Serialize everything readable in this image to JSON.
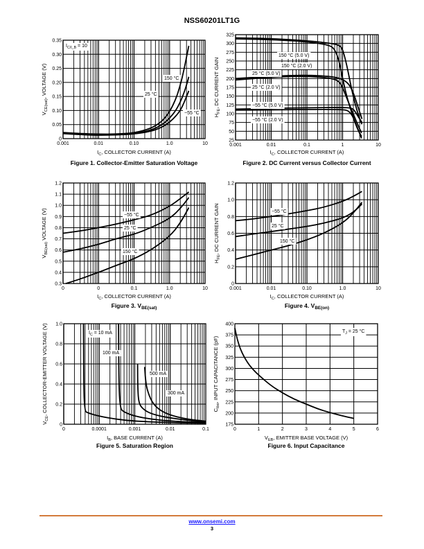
{
  "header": {
    "title": "NSS60201LT1G"
  },
  "footer": {
    "link": "www.onsemi.com",
    "page": "3",
    "accent": "#d37a3b",
    "link_color": "#1a1aff"
  },
  "chart_data": [
    {
      "id": "fig1",
      "type": "line",
      "caption": "Figure 1. Collector-Emitter Saturation Voltage",
      "xlabel": "I_C, COLLECTOR CURRENT (A)",
      "ylabel": "V_CE(sat), VOLTAGE (V)",
      "xscale": "log",
      "xlim": [
        0.001,
        10
      ],
      "ylim": [
        0,
        0.35
      ],
      "xticks": [
        "0.001",
        "0.01",
        "0.10",
        "1.0",
        "10"
      ],
      "yticks": [
        "0",
        "0.05",
        "0.10",
        "0.15",
        "0.20",
        "0.25",
        "0.30",
        "0.35"
      ],
      "ytick_values": [
        0,
        0.05,
        0.1,
        0.15,
        0.2,
        0.25,
        0.3,
        0.35
      ],
      "grid": true,
      "annotations": [
        "I_C/I_B = 10",
        "150 °C",
        "25 °C",
        "−55 °C"
      ],
      "series": [
        {
          "name": "150 °C",
          "x": [
            0.001,
            0.003,
            0.01,
            0.03,
            0.1,
            0.3,
            0.6,
            1.0,
            1.5,
            2.0,
            2.5,
            3.0,
            3.5
          ],
          "y": [
            0.022,
            0.018,
            0.016,
            0.016,
            0.02,
            0.036,
            0.06,
            0.095,
            0.14,
            0.19,
            0.24,
            0.29,
            0.33
          ]
        },
        {
          "name": "25 °C",
          "x": [
            0.001,
            0.003,
            0.01,
            0.03,
            0.1,
            0.3,
            0.6,
            1.0,
            1.5,
            2.0,
            2.5,
            3.0,
            3.5
          ],
          "y": [
            0.02,
            0.016,
            0.014,
            0.014,
            0.017,
            0.03,
            0.048,
            0.072,
            0.1,
            0.13,
            0.16,
            0.19,
            0.22
          ]
        },
        {
          "name": "−55 °C",
          "x": [
            0.001,
            0.003,
            0.01,
            0.03,
            0.1,
            0.3,
            0.6,
            1.0,
            1.5,
            2.0,
            2.5,
            3.0,
            3.5
          ],
          "y": [
            0.018,
            0.014,
            0.012,
            0.013,
            0.016,
            0.026,
            0.04,
            0.058,
            0.08,
            0.1,
            0.125,
            0.15,
            0.17
          ]
        }
      ]
    },
    {
      "id": "fig2",
      "type": "line",
      "caption": "Figure 2. DC Current versus Collector Current",
      "xlabel": "I_C, COLLECTOR CURRENT (A)",
      "ylabel": "H_FE, DC CURRENT GAIN",
      "xscale": "log",
      "xlim": [
        0.001,
        10
      ],
      "ylim": [
        25,
        325
      ],
      "xticks": [
        "0.001",
        "0.01",
        "0.1",
        "1",
        "10"
      ],
      "yticks": [
        "25",
        "50",
        "75",
        "100",
        "125",
        "150",
        "175",
        "200",
        "225",
        "250",
        "275",
        "300",
        "325"
      ],
      "ytick_values": [
        25,
        50,
        75,
        100,
        125,
        150,
        175,
        200,
        225,
        250,
        275,
        300,
        325
      ],
      "grid": true,
      "annotations": [
        "150 °C (5.0 V)",
        "150 °C (2.0 V)",
        "25 °C (5.0 V)",
        "25 °C (2.0 V)",
        "−55 °C (5.0 V)",
        "−55 °C (2.0 V)"
      ],
      "series": [
        {
          "name": "150 °C (5.0 V)",
          "x": [
            0.001,
            0.01,
            0.1,
            0.5,
            0.8,
            1.0,
            1.3,
            1.7,
            2.2,
            3.0,
            3.5
          ],
          "y": [
            316,
            314,
            308,
            300,
            295,
            285,
            240,
            180,
            130,
            85,
            70
          ]
        },
        {
          "name": "150 °C (2.0 V)",
          "x": [
            0.001,
            0.01,
            0.1,
            0.4,
            0.6,
            0.8,
            1.0,
            1.3,
            1.7,
            2.5,
            3.4
          ],
          "y": [
            313,
            311,
            305,
            296,
            285,
            250,
            200,
            150,
            110,
            60,
            35
          ]
        },
        {
          "name": "25 °C (5.0 V)",
          "x": [
            0.001,
            0.01,
            0.1,
            0.5,
            1.0,
            1.5,
            2.0,
            2.5,
            3.0,
            3.5
          ],
          "y": [
            200,
            207,
            210,
            206,
            198,
            185,
            160,
            130,
            105,
            85
          ]
        },
        {
          "name": "25 °C (2.0 V)",
          "x": [
            0.001,
            0.01,
            0.1,
            0.5,
            0.8,
            1.0,
            1.3,
            1.8,
            2.5,
            3.4
          ],
          "y": [
            196,
            204,
            207,
            201,
            192,
            175,
            145,
            110,
            75,
            45
          ]
        },
        {
          "name": "−55 °C (5.0 V)",
          "x": [
            0.001,
            0.01,
            0.1,
            1.0,
            1.8,
            2.2,
            2.8,
            3.5
          ],
          "y": [
            113,
            115,
            117,
            118,
            116,
            108,
            90,
            75
          ]
        },
        {
          "name": "−55 °C (2.0 V)",
          "x": [
            0.001,
            0.01,
            0.1,
            1.0,
            1.5,
            2.0,
            2.6,
            3.4
          ],
          "y": [
            110,
            111,
            112,
            112,
            108,
            90,
            60,
            30
          ]
        }
      ]
    },
    {
      "id": "fig3",
      "type": "line",
      "caption": "Figure 3. V_BE(sat)",
      "xlabel": "I_C, COLLECTOR CURRENT (A)",
      "ylabel": "V_BE(sat) VOLTAGE (V)",
      "xscale": "log",
      "xlim": [
        0.001,
        10
      ],
      "ylim": [
        0.3,
        1.2
      ],
      "xticks": [
        "0",
        "0",
        "0.1",
        "1.0",
        "10"
      ],
      "yticks": [
        "0.3",
        "0.4",
        "0.5",
        "0.6",
        "0.7",
        "0.8",
        "0.9",
        "1.0",
        "1.1",
        "1.2"
      ],
      "ytick_values": [
        0.3,
        0.4,
        0.5,
        0.6,
        0.7,
        0.8,
        0.9,
        1.0,
        1.1,
        1.2
      ],
      "grid": true,
      "annotations": [
        "−55 °C",
        "25 °C",
        "150 °C"
      ],
      "series": [
        {
          "name": "−55 °C",
          "x": [
            0.001,
            0.003,
            0.01,
            0.03,
            0.1,
            0.3,
            1.0,
            2.0,
            3.5
          ],
          "y": [
            0.75,
            0.77,
            0.8,
            0.83,
            0.87,
            0.91,
            0.99,
            1.06,
            1.12
          ]
        },
        {
          "name": "25 °C",
          "x": [
            0.001,
            0.003,
            0.01,
            0.03,
            0.1,
            0.3,
            1.0,
            2.0,
            3.5
          ],
          "y": [
            0.58,
            0.61,
            0.65,
            0.7,
            0.74,
            0.8,
            0.88,
            0.97,
            1.07
          ]
        },
        {
          "name": "150 °C",
          "x": [
            0.0012,
            0.003,
            0.01,
            0.03,
            0.1,
            0.3,
            1.0,
            2.0,
            3.5
          ],
          "y": [
            0.3,
            0.34,
            0.4,
            0.46,
            0.52,
            0.6,
            0.72,
            0.84,
            0.98
          ]
        }
      ]
    },
    {
      "id": "fig4",
      "type": "line",
      "caption": "Figure 4. V_BE(on)",
      "xlabel": "I_C, COLLECTOR CURRENT (A)",
      "ylabel": "H_FE, DC CURRENT GAIN",
      "xscale": "log",
      "xlim": [
        0.001,
        10
      ],
      "ylim": [
        0,
        1.2
      ],
      "xticks": [
        "0.001",
        "0.01",
        "0.10",
        "1.0",
        "10"
      ],
      "yticks": [
        "0",
        "0.2",
        "0.4",
        "0.6",
        "0.8",
        "1.0",
        "1.2"
      ],
      "ytick_values": [
        0,
        0.2,
        0.4,
        0.6,
        0.8,
        1.0,
        1.2
      ],
      "grid": true,
      "annotations": [
        "−55 °C",
        "25 °C",
        "150 °C"
      ],
      "series": [
        {
          "name": "−55 °C",
          "x": [
            0.001,
            0.003,
            0.01,
            0.03,
            0.1,
            0.3,
            1.0,
            2.0,
            3.5
          ],
          "y": [
            0.75,
            0.77,
            0.8,
            0.83,
            0.87,
            0.91,
            0.98,
            1.04,
            1.1
          ]
        },
        {
          "name": "25 °C",
          "x": [
            0.001,
            0.003,
            0.01,
            0.03,
            0.1,
            0.3,
            1.0,
            2.0,
            3.5
          ],
          "y": [
            0.56,
            0.59,
            0.62,
            0.65,
            0.68,
            0.72,
            0.78,
            0.85,
            0.95
          ]
        },
        {
          "name": "150 °C",
          "x": [
            0.001,
            0.003,
            0.01,
            0.03,
            0.1,
            0.3,
            1.0,
            2.0,
            3.5
          ],
          "y": [
            0.29,
            0.34,
            0.4,
            0.45,
            0.52,
            0.6,
            0.72,
            0.84,
            0.97
          ]
        }
      ]
    },
    {
      "id": "fig5",
      "type": "line",
      "caption": "Figure 5. Saturation Region",
      "xlabel": "I_B, BASE CURRENT (A)",
      "ylabel": "V_CE, COLLECTOR-EMITTER VOLTAGE (V)",
      "xscale": "log",
      "xlim": [
        1e-05,
        0.1
      ],
      "ylim": [
        0,
        1.0
      ],
      "xticks": [
        "0",
        "0.0001",
        "0.001",
        "0.01",
        "0.1"
      ],
      "yticks": [
        "0",
        "0.2",
        "0.4",
        "0.6",
        "0.8",
        "1.0"
      ],
      "ytick_values": [
        0,
        0.2,
        0.4,
        0.6,
        0.8,
        1.0
      ],
      "grid": true,
      "annotations": [
        "I_C = 10 mA",
        "100 mA",
        "500 mA",
        "300 mA"
      ],
      "series": [
        {
          "name": "I_C = 10 mA",
          "x": [
            3.6e-05,
            3.65e-05,
            3.8e-05,
            5e-05,
            0.0001,
            0.0003,
            0.001,
            0.01,
            0.1
          ],
          "y": [
            1.0,
            0.5,
            0.13,
            0.11,
            0.08,
            0.05,
            0.03,
            0.015,
            0.01
          ]
        },
        {
          "name": "100 mA",
          "x": [
            0.00035,
            0.000355,
            0.00038,
            0.0005,
            0.001,
            0.003,
            0.01,
            0.1
          ],
          "y": [
            1.0,
            0.5,
            0.16,
            0.12,
            0.08,
            0.05,
            0.03,
            0.015
          ]
        },
        {
          "name": "300 mA",
          "x": [
            0.0012,
            0.00122,
            0.0013,
            0.0017,
            0.003,
            0.01,
            0.1
          ],
          "y": [
            0.6,
            0.35,
            0.21,
            0.15,
            0.1,
            0.06,
            0.02
          ]
        },
        {
          "name": "500 mA",
          "x": [
            0.0019,
            0.002,
            0.0022,
            0.003,
            0.005,
            0.01,
            0.03,
            0.1
          ],
          "y": [
            0.57,
            0.45,
            0.35,
            0.22,
            0.14,
            0.09,
            0.05,
            0.03
          ]
        }
      ]
    },
    {
      "id": "fig6",
      "type": "line",
      "caption": "Figure 6. Input Capacitance",
      "xlabel": "V_EB, EMITTER BASE VOLTAGE (V)",
      "ylabel": "C_ibo, INPUT CAPACITANCE (pF)",
      "xscale": "linear",
      "xlim": [
        0,
        6
      ],
      "ylim": [
        175,
        400
      ],
      "xticks": [
        "0",
        "1",
        "2",
        "3",
        "4",
        "5",
        "6"
      ],
      "xtick_values": [
        0,
        1,
        2,
        3,
        4,
        5,
        6
      ],
      "yticks": [
        "175",
        "200",
        "225",
        "250",
        "275",
        "300",
        "325",
        "350",
        "375",
        "400"
      ],
      "ytick_values": [
        175,
        200,
        225,
        250,
        275,
        300,
        325,
        350,
        375,
        400
      ],
      "grid": true,
      "annotations": [
        "T_J = 25 °C"
      ],
      "series": [
        {
          "name": "T_J = 25 °C",
          "x": [
            0,
            0.1,
            0.25,
            0.5,
            0.75,
            1.0,
            1.5,
            2.0,
            2.5,
            3.0,
            3.5,
            4.0,
            4.5,
            5.0
          ],
          "y": [
            390,
            365,
            340,
            315,
            298,
            285,
            262,
            245,
            231,
            220,
            209,
            201,
            194,
            188
          ]
        }
      ]
    }
  ]
}
